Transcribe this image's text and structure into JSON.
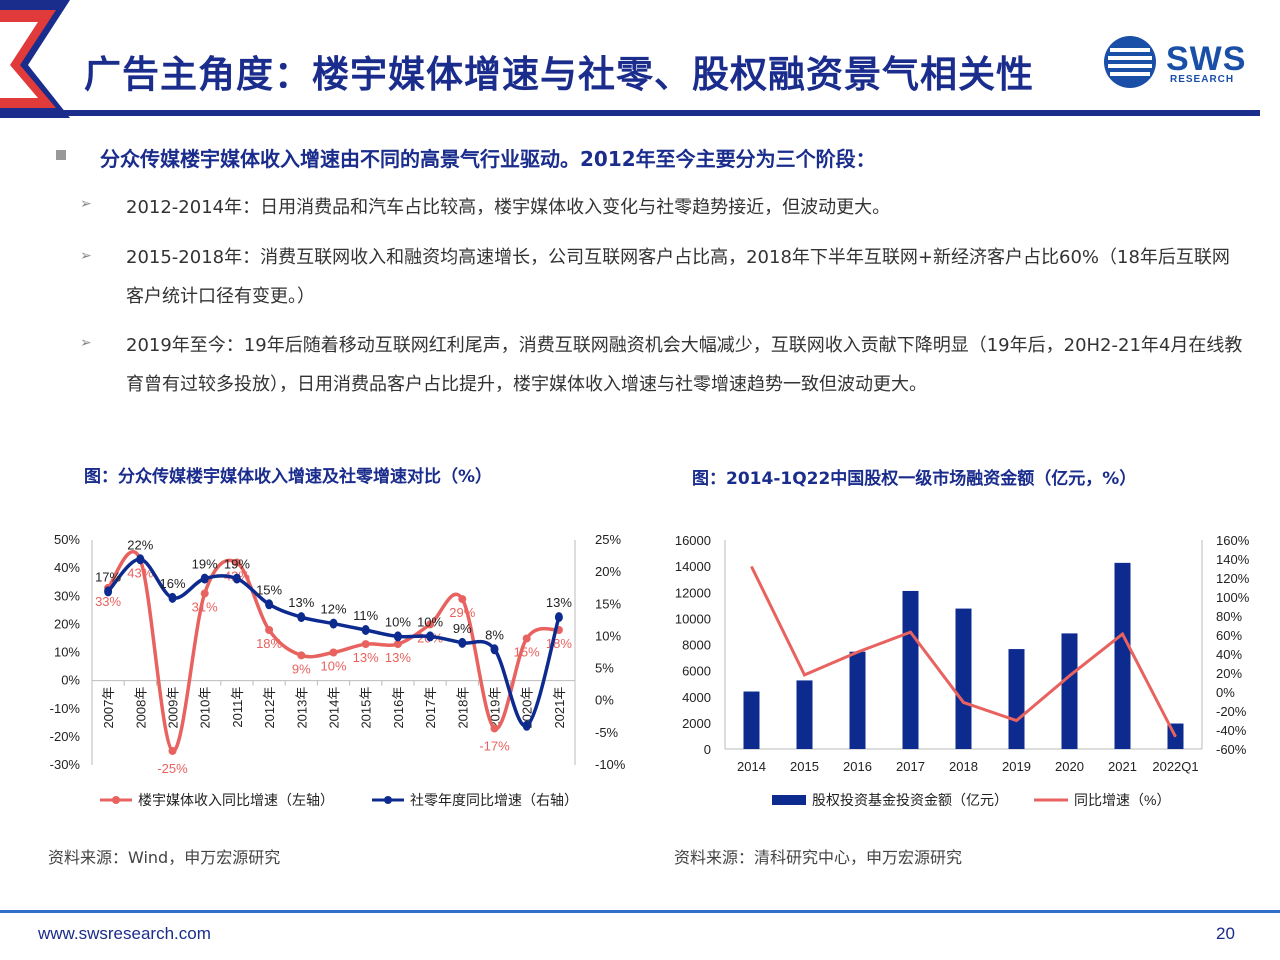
{
  "header": {
    "title": "广告主角度：楼宇媒体增速与社零、股权融资景气相关性",
    "logo_text": "SWS",
    "logo_sub": "RESEARCH"
  },
  "summary": {
    "main": "分众传媒楼宇媒体收入增速由不同的高景气行业驱动。2012年至今主要分为三个阶段：",
    "points": [
      "2012-2014年：日用消费品和汽车占比较高，楼宇媒体收入变化与社零趋势接近，但波动更大。",
      "2015-2018年：消费互联网收入和融资均高速增长，公司互联网客户占比高，2018年下半年互联网+新经济客户占比60%（18年后互联网客户统计口径有变更。）",
      "2019年至今：19年后随着移动互联网红利尾声，消费互联网融资机会大幅减少，互联网收入贡献下降明显（19年后，20H2-21年4月在线教育曾有过较多投放），日用消费品客户占比提升，楼宇媒体收入增速与社零增速趋势一致但波动更大。"
    ]
  },
  "figures": {
    "left_title": "图：分众传媒楼宇媒体收入增速及社零增速对比（%）",
    "right_title": "图：2014-1Q22中国股权一级市场融资金额（亿元，%）",
    "left_source": "资料来源：Wind，申万宏源研究",
    "right_source": "资料来源：清科研究中心，申万宏源研究"
  },
  "footer": {
    "url": "www.swsresearch.com",
    "page": "20"
  },
  "colors": {
    "navy": "#1a2c8c",
    "red": "#e8625f",
    "bar_blue": "#0d2a8f"
  },
  "chart_data": [
    {
      "type": "line",
      "categories": [
        "2007年",
        "2008年",
        "2009年",
        "2010年",
        "2011年",
        "2012年",
        "2013年",
        "2014年",
        "2015年",
        "2016年",
        "2017年",
        "2018年",
        "2019年",
        "2020年",
        "2021年"
      ],
      "series": [
        {
          "name": "楼宇媒体收入同比增速（左轴）",
          "axis": "left",
          "color": "#e8625f",
          "x": [
            0,
            1,
            2,
            3,
            4,
            5,
            6,
            7,
            8,
            9,
            10,
            11,
            12,
            13,
            14
          ],
          "values": [
            33,
            43,
            -25,
            31,
            42,
            18,
            9,
            10,
            13,
            13,
            20,
            29,
            -17,
            15,
            18
          ],
          "labels": [
            "33%",
            "43%",
            "-25%",
            "31%",
            "42%",
            "18%",
            "9%",
            "10%",
            "13%",
            "13%",
            "20%",
            "29%",
            "-17%",
            "15%",
            "18%"
          ]
        },
        {
          "name": "社零年度同比增速（右轴）",
          "axis": "right",
          "color": "#0d2a8f",
          "x": [
            0,
            1,
            2,
            3,
            4,
            5,
            6,
            7,
            8,
            9,
            10,
            11,
            12,
            13,
            14
          ],
          "values": [
            17,
            22,
            16,
            19,
            19,
            15,
            13,
            12,
            11,
            10,
            10,
            9,
            8,
            -3.9,
            13
          ],
          "labels": [
            "17%",
            "22%",
            "16%",
            "19%",
            "19%",
            "15%",
            "13%",
            "12%",
            "11%",
            "10%",
            "10%",
            "9%",
            "8%",
            "",
            "13%"
          ]
        }
      ],
      "y_left": {
        "min": -30,
        "max": 50,
        "ticks": [
          "-30%",
          "-20%",
          "-10%",
          "0%",
          "10%",
          "20%",
          "30%",
          "40%",
          "50%"
        ]
      },
      "y_right": {
        "min": -10,
        "max": 25,
        "ticks": [
          "-10%",
          "-5%",
          "0%",
          "5%",
          "10%",
          "15%",
          "20%",
          "25%"
        ]
      },
      "legend_position": "bottom"
    },
    {
      "type": "bar",
      "categories": [
        "2014",
        "2015",
        "2016",
        "2017",
        "2018",
        "2019",
        "2020",
        "2021",
        "2022Q1"
      ],
      "series": [
        {
          "name": "股权投资基金投资金额（亿元）",
          "axis": "left",
          "color": "#0d2a8f",
          "values": [
            4400,
            5250,
            7450,
            12100,
            10750,
            7650,
            8850,
            14250,
            1950
          ]
        },
        {
          "name": "同比增速（%）",
          "axis": "right",
          "color": "#e8625f",
          "type": "line",
          "values": [
            132,
            18,
            42,
            63,
            -11,
            -30,
            17,
            61,
            -47
          ]
        }
      ],
      "y_left": {
        "min": 0,
        "max": 16000,
        "ticks": [
          "0",
          "2000",
          "4000",
          "6000",
          "8000",
          "10000",
          "12000",
          "14000",
          "16000"
        ]
      },
      "y_right": {
        "min": -60,
        "max": 160,
        "ticks": [
          "-60%",
          "-40%",
          "-20%",
          "0%",
          "20%",
          "40%",
          "60%",
          "80%",
          "100%",
          "120%",
          "140%",
          "160%"
        ]
      },
      "legend_position": "bottom"
    }
  ]
}
